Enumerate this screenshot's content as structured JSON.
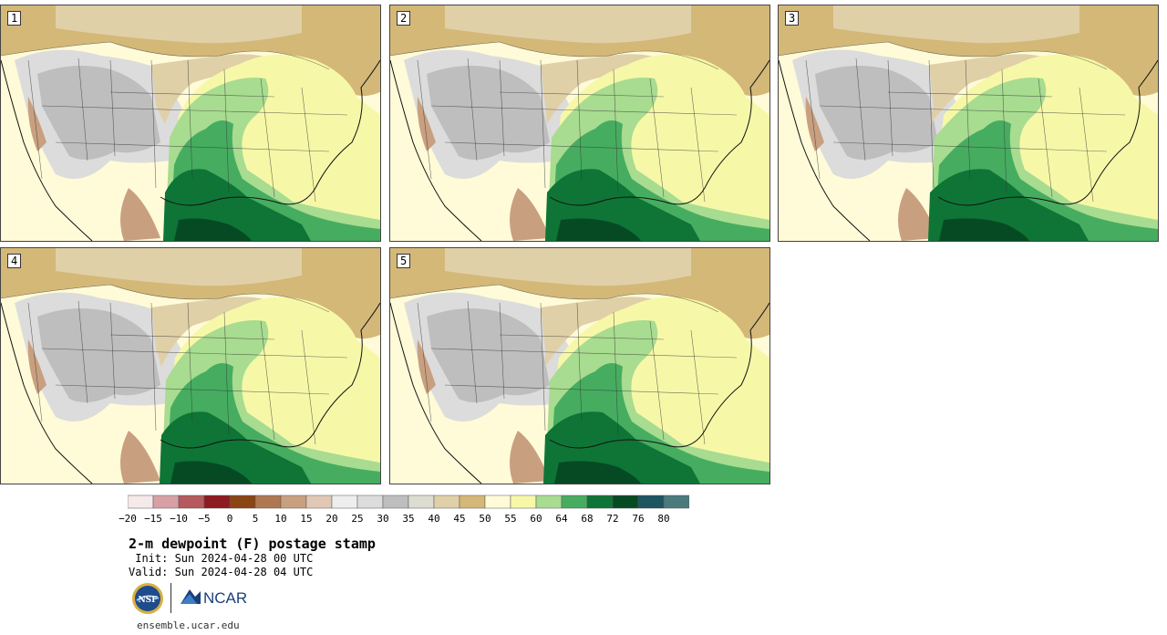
{
  "panels": [
    {
      "label": "1"
    },
    {
      "label": "2"
    },
    {
      "label": "3"
    },
    {
      "label": "4"
    },
    {
      "label": "5"
    }
  ],
  "colorbar": {
    "colors": [
      "#f5e9ea",
      "#d8a0a4",
      "#b55a5e",
      "#8e1a22",
      "#8b4513",
      "#b07850",
      "#c8a080",
      "#e0c8b5",
      "#eeeeee",
      "#dcdcdc",
      "#bebebe",
      "#dcdcd0",
      "#e0d0a8",
      "#d4b878",
      "#fffbd8",
      "#f6f8a8",
      "#a8dc90",
      "#46ad60",
      "#0e7536",
      "#064a24",
      "#1d5560",
      "#4a7a7c"
    ],
    "ticks": [
      "−20",
      "−15",
      "−10",
      "−5",
      "0",
      "5",
      "10",
      "15",
      "20",
      "25",
      "30",
      "35",
      "40",
      "45",
      "50",
      "55",
      "60",
      "64",
      "68",
      "72",
      "76",
      "80"
    ]
  },
  "title": "2-m dewpoint (F) postage stamp",
  "init": " Init: Sun 2024-04-28 00 UTC",
  "valid": "Valid: Sun 2024-04-28 04 UTC",
  "logos": {
    "nsf": "NSF",
    "ncar": "NCAR"
  },
  "website": "ensemble.ucar.edu",
  "map_colors": {
    "ocean": "#fffbd8",
    "canada": "#d4b878",
    "canada_light": "#e0d0a8",
    "west_gray": "#bebebe",
    "west_light": "#dcdcdc",
    "brown": "#c8a080",
    "plains_tan": "#e0d0a8",
    "yellow": "#f6f8a8",
    "light_green": "#a8dc90",
    "green": "#46ad60",
    "dark_green": "#0e7536",
    "darkest_green": "#064a24"
  }
}
